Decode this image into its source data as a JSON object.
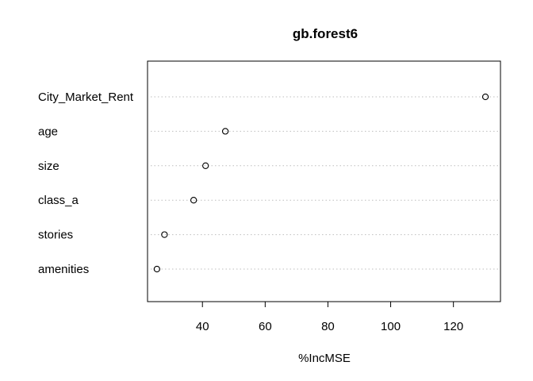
{
  "chart_data": {
    "type": "scatter",
    "title": "gb.forest6",
    "xlabel": "%IncMSE",
    "ylabel": "",
    "categories": [
      "City_Market_Rent",
      "age",
      "size",
      "class_a",
      "stories",
      "amenities"
    ],
    "values": [
      130.2,
      47.3,
      41.0,
      37.2,
      27.9,
      25.5
    ],
    "xlim": [
      22.5,
      135.0
    ],
    "xticks": [
      40,
      60,
      80,
      100,
      120
    ],
    "grid": "dotted horizontal guide lines",
    "marker": "open circle",
    "colors": {
      "points": "#000000",
      "guides": "#bebebe",
      "frame": "#000000"
    }
  }
}
